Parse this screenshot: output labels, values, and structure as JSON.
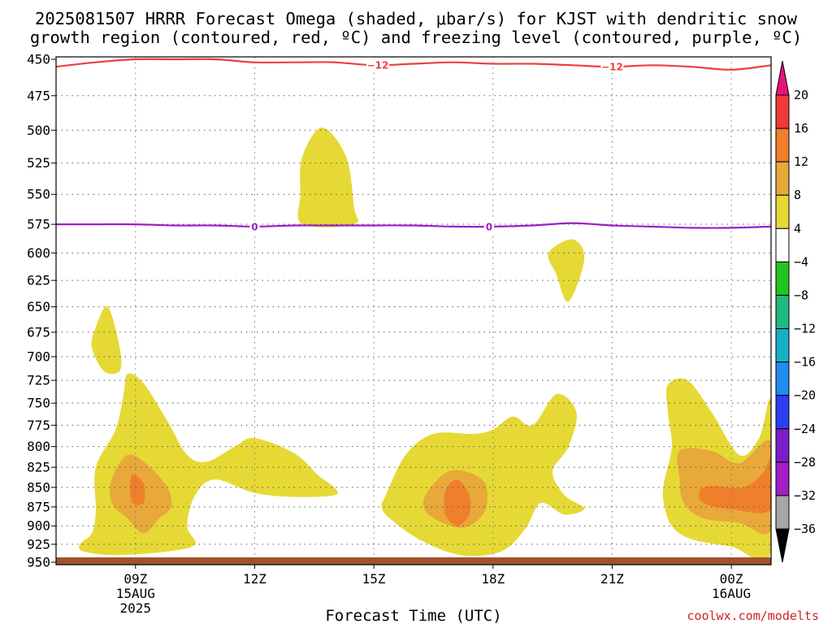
{
  "chart_data": {
    "type": "heatmap",
    "title": "2025081507 HRRR Forecast Omega (shaded, μbar/s) for KJST with dendritic snow",
    "subtitle": "growth region (contoured, red, ºC) and freezing level (contoured, purple, ºC)",
    "xlabel": "Forecast Time (UTC)",
    "ylabel": "",
    "credit": "coolwx.com/modelts",
    "x_ticks": [
      {
        "hour": 9,
        "label": "09Z",
        "sub1": "15AUG",
        "sub2": "2025"
      },
      {
        "hour": 12,
        "label": "12Z",
        "sub1": "",
        "sub2": ""
      },
      {
        "hour": 15,
        "label": "15Z",
        "sub1": "",
        "sub2": ""
      },
      {
        "hour": 18,
        "label": "18Z",
        "sub1": "",
        "sub2": ""
      },
      {
        "hour": 21,
        "label": "21Z",
        "sub1": "",
        "sub2": ""
      },
      {
        "hour": 24,
        "label": "00Z",
        "sub1": "16AUG",
        "sub2": ""
      }
    ],
    "xlim_hours": [
      7,
      25
    ],
    "y_ticks": [
      "450",
      "475",
      "500",
      "525",
      "550",
      "575",
      "600",
      "625",
      "650",
      "675",
      "700",
      "725",
      "750",
      "775",
      "800",
      "825",
      "850",
      "875",
      "900",
      "925",
      "950"
    ],
    "y_values": [
      450,
      475,
      500,
      525,
      550,
      575,
      600,
      625,
      650,
      675,
      700,
      725,
      750,
      775,
      800,
      825,
      850,
      875,
      900,
      925,
      950
    ],
    "ylim_hpa": [
      950,
      450
    ],
    "y_scale": "log-pressure",
    "grid": true,
    "colorbar": {
      "labels": [
        "20",
        "16",
        "12",
        "8",
        "4",
        "−4",
        "−8",
        "−12",
        "−16",
        "−20",
        "−24",
        "−28",
        "−32",
        "−36"
      ],
      "bins": [
        {
          "range": [
            16,
            20
          ],
          "color": "#f03a3a"
        },
        {
          "range": [
            12,
            16
          ],
          "color": "#f07f2c"
        },
        {
          "range": [
            8,
            12
          ],
          "color": "#e8a83a"
        },
        {
          "range": [
            4,
            8
          ],
          "color": "#e6d935"
        },
        {
          "range": [
            -4,
            4
          ],
          "color": "#ffffff"
        },
        {
          "range": [
            -8,
            -4
          ],
          "color": "#22c41e"
        },
        {
          "range": [
            -12,
            -8
          ],
          "color": "#22b980"
        },
        {
          "range": [
            -16,
            -12
          ],
          "color": "#16b0c4"
        },
        {
          "range": [
            -20,
            -16
          ],
          "color": "#1f8cf0"
        },
        {
          "range": [
            -24,
            -20
          ],
          "color": "#2c3ff0"
        },
        {
          "range": [
            -28,
            -24
          ],
          "color": "#7a1ec9"
        },
        {
          "range": [
            -32,
            -28
          ],
          "color": "#a31ec4"
        },
        {
          "range": [
            -36,
            -32
          ],
          "color": "#a6a6a6"
        }
      ],
      "top_arrow_color": "#e8117c",
      "bottom_arrow_color": "#000000"
    },
    "colors": {
      "yellow": "#e6d935",
      "light_orange": "#e8a83a",
      "orange": "#f07f2c",
      "dgz_line": "#ee3f3f",
      "freezing_line": "#9b20c8",
      "ground": "#a0522d"
    },
    "omega_regions": [
      {
        "name": "yellow-upper-blob",
        "level": 4,
        "points": [
          [
            13.2,
            520
          ],
          [
            13.7,
            498
          ],
          [
            14.3,
            520
          ],
          [
            14.5,
            560
          ],
          [
            14.5,
            575
          ],
          [
            13.2,
            575
          ],
          [
            13.15,
            550
          ]
        ]
      },
      {
        "name": "yellow-mid-blob",
        "level": 4,
        "points": [
          [
            19.4,
            600
          ],
          [
            20.0,
            588
          ],
          [
            20.3,
            605
          ],
          [
            19.9,
            645
          ],
          [
            19.6,
            620
          ]
        ]
      },
      {
        "name": "yellow-left-blob",
        "level": 4,
        "points": [
          [
            8.0,
            670
          ],
          [
            8.3,
            650
          ],
          [
            8.6,
            690
          ],
          [
            8.6,
            715
          ],
          [
            8.2,
            715
          ],
          [
            7.9,
            690
          ]
        ]
      },
      {
        "name": "yellow-morning-band",
        "level": 4,
        "points": [
          [
            7.6,
            925
          ],
          [
            7.9,
            910
          ],
          [
            8.0,
            880
          ],
          [
            8.0,
            825
          ],
          [
            8.5,
            780
          ],
          [
            8.7,
            740
          ],
          [
            8.8,
            718
          ],
          [
            9.2,
            728
          ],
          [
            9.8,
            770
          ],
          [
            10.3,
            810
          ],
          [
            10.8,
            818
          ],
          [
            11.5,
            800
          ],
          [
            12.0,
            790
          ],
          [
            13.0,
            808
          ],
          [
            13.6,
            835
          ],
          [
            14.0,
            850
          ],
          [
            14.0,
            860
          ],
          [
            13.0,
            862
          ],
          [
            12.0,
            857
          ],
          [
            11.0,
            840
          ],
          [
            10.5,
            860
          ],
          [
            10.3,
            900
          ],
          [
            10.5,
            925
          ],
          [
            9.8,
            935
          ],
          [
            8.5,
            940
          ],
          [
            7.7,
            935
          ]
        ]
      },
      {
        "name": "yellow-afternoon-band",
        "level": 4,
        "points": [
          [
            15.3,
            860
          ],
          [
            15.8,
            810
          ],
          [
            16.5,
            785
          ],
          [
            17.5,
            785
          ],
          [
            18.0,
            780
          ],
          [
            18.5,
            765
          ],
          [
            19.0,
            775
          ],
          [
            19.6,
            740
          ],
          [
            20.1,
            760
          ],
          [
            19.9,
            800
          ],
          [
            19.5,
            830
          ],
          [
            19.8,
            860
          ],
          [
            20.3,
            877
          ],
          [
            19.8,
            885
          ],
          [
            19.2,
            870
          ],
          [
            18.8,
            905
          ],
          [
            18.2,
            935
          ],
          [
            17.2,
            940
          ],
          [
            16.2,
            920
          ],
          [
            15.4,
            890
          ],
          [
            15.2,
            875
          ]
        ]
      },
      {
        "name": "yellow-evening-band",
        "level": 4,
        "points": [
          [
            22.4,
            730
          ],
          [
            22.9,
            725
          ],
          [
            23.5,
            760
          ],
          [
            24.2,
            810
          ],
          [
            24.7,
            790
          ],
          [
            25.0,
            750
          ],
          [
            25.0,
            935
          ],
          [
            24.0,
            928
          ],
          [
            23.0,
            918
          ],
          [
            22.5,
            900
          ],
          [
            22.3,
            870
          ],
          [
            22.3,
            845
          ],
          [
            22.5,
            800
          ],
          [
            22.4,
            760
          ]
        ]
      },
      {
        "name": "light-orange-morning",
        "level": 8,
        "points": [
          [
            8.4,
            840
          ],
          [
            8.8,
            810
          ],
          [
            9.3,
            822
          ],
          [
            9.8,
            850
          ],
          [
            9.9,
            875
          ],
          [
            9.6,
            890
          ],
          [
            9.2,
            910
          ],
          [
            8.8,
            890
          ],
          [
            8.4,
            870
          ]
        ]
      },
      {
        "name": "light-orange-afternoon",
        "level": 8,
        "points": [
          [
            16.3,
            860
          ],
          [
            16.8,
            832
          ],
          [
            17.3,
            830
          ],
          [
            17.8,
            845
          ],
          [
            17.8,
            880
          ],
          [
            17.3,
            902
          ],
          [
            16.7,
            895
          ],
          [
            16.3,
            880
          ]
        ]
      },
      {
        "name": "light-orange-evening",
        "level": 8,
        "points": [
          [
            22.7,
            805
          ],
          [
            23.5,
            805
          ],
          [
            24.2,
            820
          ],
          [
            25.0,
            795
          ],
          [
            25.0,
            905
          ],
          [
            24.2,
            896
          ],
          [
            23.3,
            890
          ],
          [
            22.8,
            870
          ],
          [
            22.7,
            840
          ]
        ]
      },
      {
        "name": "orange-morning",
        "level": 12,
        "points": [
          [
            8.9,
            835
          ],
          [
            9.2,
            845
          ],
          [
            9.2,
            870
          ],
          [
            8.9,
            868
          ]
        ]
      },
      {
        "name": "orange-afternoon",
        "level": 12,
        "points": [
          [
            16.8,
            855
          ],
          [
            17.1,
            840
          ],
          [
            17.4,
            860
          ],
          [
            17.4,
            885
          ],
          [
            17.1,
            900
          ],
          [
            16.8,
            885
          ]
        ]
      },
      {
        "name": "orange-evening",
        "level": 12,
        "points": [
          [
            23.2,
            855
          ],
          [
            23.5,
            848
          ],
          [
            24.3,
            850
          ],
          [
            24.8,
            832
          ],
          [
            25.0,
            815
          ],
          [
            25.0,
            878
          ],
          [
            24.0,
            878
          ],
          [
            23.3,
            870
          ]
        ]
      }
    ],
    "dgz_contour": {
      "label": "−12",
      "points": [
        [
          7.0,
          455
        ],
        [
          8.0,
          452
        ],
        [
          9.0,
          450
        ],
        [
          10.0,
          450
        ],
        [
          11.0,
          450
        ],
        [
          12.0,
          452
        ],
        [
          13.0,
          452
        ],
        [
          14.0,
          452
        ],
        [
          15.0,
          454
        ],
        [
          16.0,
          453
        ],
        [
          17.0,
          452
        ],
        [
          18.0,
          453
        ],
        [
          19.0,
          453
        ],
        [
          20.0,
          454
        ],
        [
          21.0,
          455
        ],
        [
          22.0,
          454
        ],
        [
          23.0,
          455
        ],
        [
          24.0,
          457
        ],
        [
          25.0,
          454
        ]
      ],
      "label_hours": [
        15.1,
        21.0
      ]
    },
    "freezing_contour": {
      "label": "0",
      "points": [
        [
          7.0,
          575
        ],
        [
          8.0,
          575
        ],
        [
          9.0,
          575
        ],
        [
          10.0,
          576
        ],
        [
          11.0,
          576
        ],
        [
          12.0,
          577
        ],
        [
          13.0,
          576
        ],
        [
          14.0,
          576
        ],
        [
          15.0,
          576
        ],
        [
          16.0,
          576
        ],
        [
          17.0,
          577
        ],
        [
          18.0,
          577
        ],
        [
          19.0,
          576
        ],
        [
          20.0,
          574
        ],
        [
          21.0,
          576
        ],
        [
          22.0,
          577
        ],
        [
          23.0,
          578
        ],
        [
          24.0,
          578
        ],
        [
          25.0,
          577
        ]
      ],
      "label_hours": [
        12.0,
        17.9
      ]
    },
    "ground_segments": [
      [
        7.0,
        25.0
      ]
    ]
  }
}
